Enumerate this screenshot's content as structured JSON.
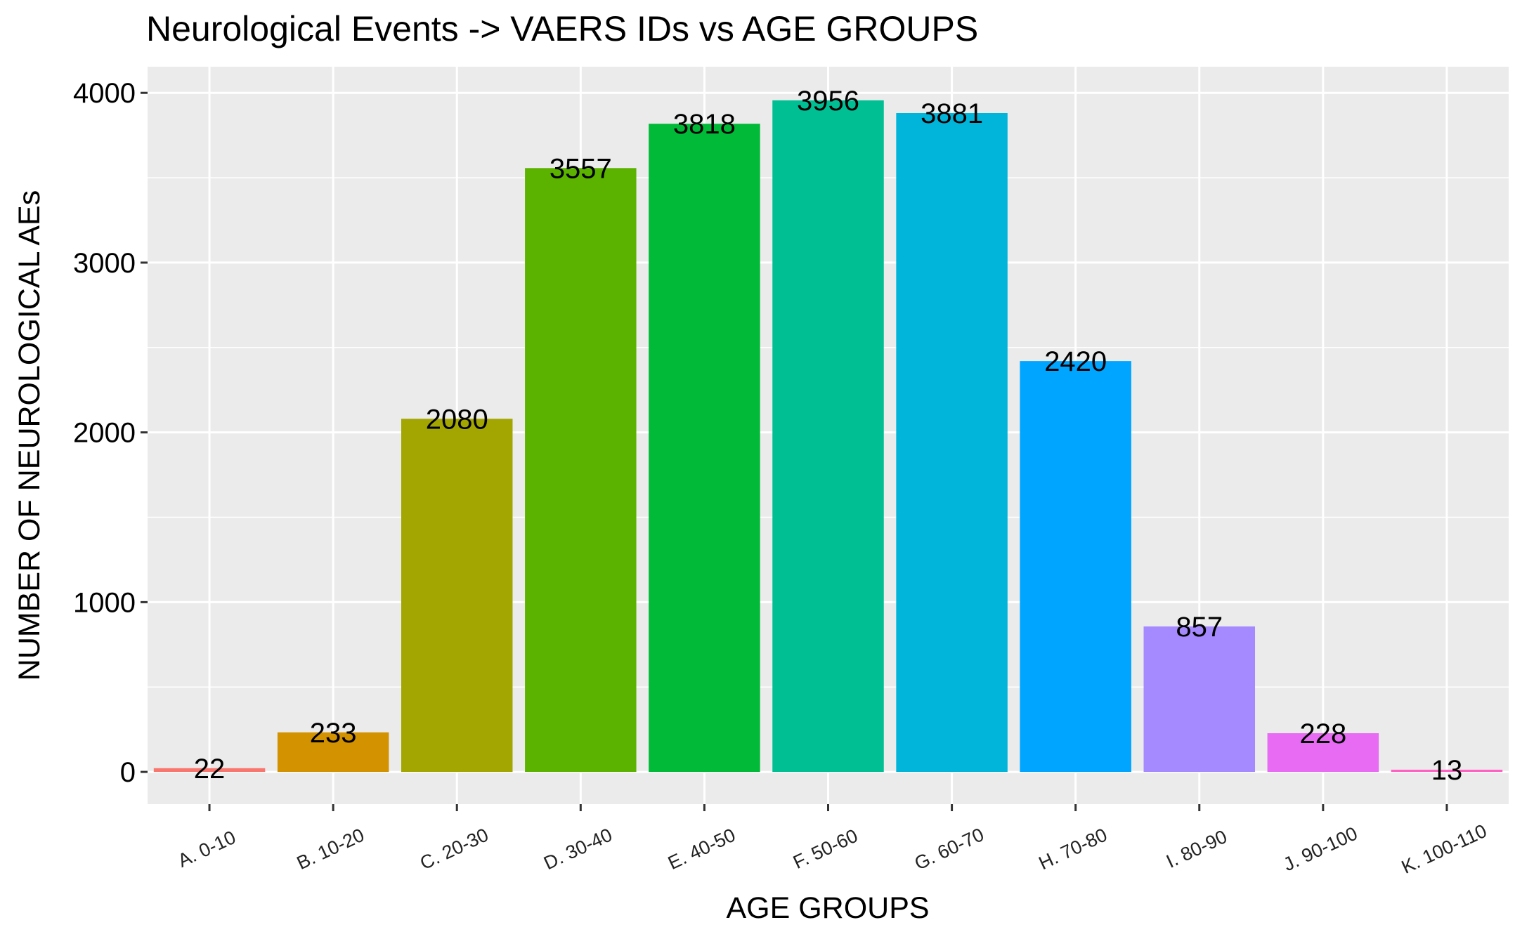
{
  "chart_data": {
    "type": "bar",
    "title": "Neurological Events -> VAERS IDs vs AGE GROUPS",
    "xlabel": "AGE GROUPS",
    "ylabel": "NUMBER OF NEUROLOGICAL AEs",
    "categories": [
      "A. 0-10",
      "B. 10-20",
      "C. 20-30",
      "D. 30-40",
      "E. 40-50",
      "F. 50-60",
      "G. 60-70",
      "H. 70-80",
      "I. 80-90",
      "J. 90-100",
      "K. 100-110"
    ],
    "values": [
      22,
      233,
      2080,
      3557,
      3818,
      3956,
      3881,
      2420,
      857,
      228,
      13
    ],
    "data_labels": [
      "22",
      "233",
      "2080",
      "3557",
      "3818",
      "3956",
      "3881",
      "2420",
      "857",
      "228",
      "13"
    ],
    "colors": [
      "#F8766D",
      "#D39200",
      "#A3A500",
      "#5BB300",
      "#00BA38",
      "#00BF93",
      "#00B5D9",
      "#00A5FF",
      "#A58AFF",
      "#E76BF3",
      "#FF61C3"
    ],
    "yticks": [
      0,
      1000,
      2000,
      3000,
      4000
    ],
    "ytick_labels": [
      "0",
      "1000",
      "2000",
      "3000",
      "4000"
    ],
    "ylim": [
      -190,
      4154
    ],
    "grid": true,
    "legend": "none",
    "panel_background": "#EBEBEB",
    "grid_color": "#FFFFFF"
  }
}
